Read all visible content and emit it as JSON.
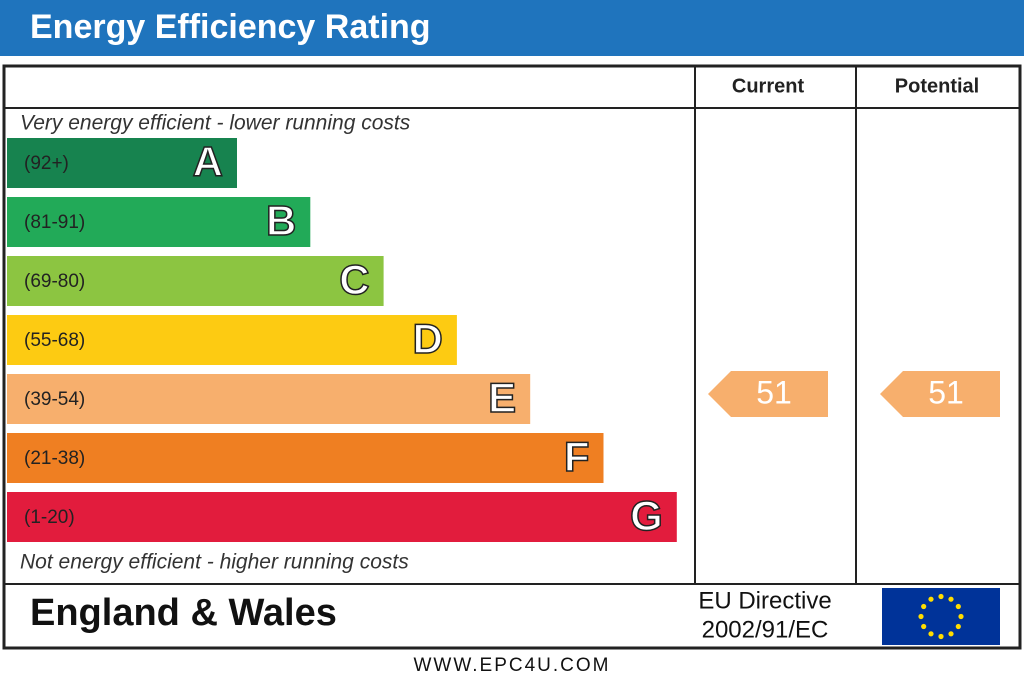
{
  "header": {
    "title": "Energy Efficiency Rating"
  },
  "columns": [
    "Current",
    "Potential"
  ],
  "top_note": "Very energy efficient - lower running costs",
  "bands": [
    {
      "range": "(92+)",
      "letter": "A",
      "color": "#17834f"
    },
    {
      "range": "(81-91)",
      "letter": "B",
      "color": "#22aa58"
    },
    {
      "range": "(69-80)",
      "letter": "C",
      "color": "#8cc541"
    },
    {
      "range": "(55-68)",
      "letter": "D",
      "color": "#fdcb12"
    },
    {
      "range": "(39-54)",
      "letter": "E",
      "color": "#f7af6d"
    },
    {
      "range": "(21-38)",
      "letter": "F",
      "color": "#ef7f22"
    },
    {
      "range": "(1-20)",
      "letter": "G",
      "color": "#e21c3d"
    }
  ],
  "bottom_note": "Not energy efficient - higher running costs",
  "current": 51,
  "potential": 51,
  "footer": {
    "region": "England & Wales",
    "directive": [
      "EU Directive",
      "2002/91/EC"
    ],
    "website": "WWW.EPC4U.COM"
  }
}
